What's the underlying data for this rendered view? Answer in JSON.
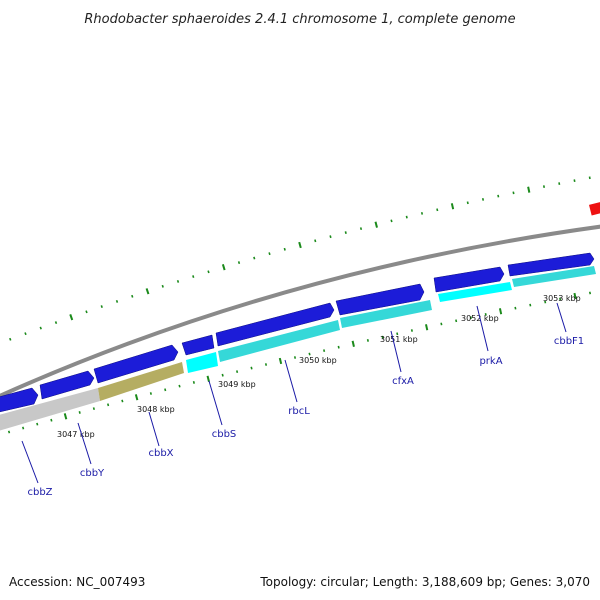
{
  "title": "Rhodobacter sphaeroides 2.4.1 chromosome 1, complete genome",
  "footer": {
    "accession": "Accession: NC_007493",
    "summary": "Topology: circular; Length: 3,188,609 bp; Genes: 3,070"
  },
  "colors": {
    "backbone": "#8a8a8a",
    "forward_cds": "#1c1cd8",
    "reverse_cds_cyan": "#35d8d8",
    "reverse_cds_bright": "#00ffff",
    "reverse_cds_olive": "#b5ad62",
    "reverse_cds_gray": "#c8c8c8",
    "tick_green": "#1b8a1b",
    "label_blue": "#1a1aa6",
    "marker_red": "#ee1111"
  },
  "kbp_labels": [
    "3047 kbp",
    "3048 kbp",
    "3049 kbp",
    "3050 kbp",
    "3051 kbp",
    "3052 kbp",
    "3053 kbp"
  ],
  "gene_labels": [
    "cbbZ",
    "cbbY",
    "cbbX",
    "cbbS",
    "rbcL",
    "cfxA",
    "prkA",
    "cbbF1"
  ]
}
